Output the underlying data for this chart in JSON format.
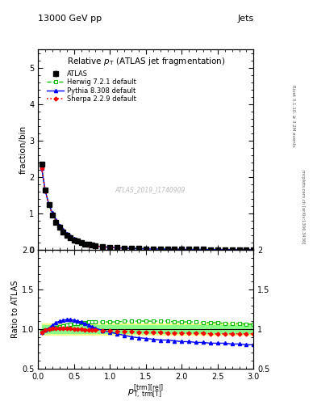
{
  "title": "Relative $p_{\\mathrm{T}}$ (ATLAS jet fragmentation)",
  "header_left": "13000 GeV pp",
  "header_right": "Jets",
  "right_label": "Rivet 3.1.10, ≥ 3.2M events",
  "right_label2": "mcplots.cern.ch [arXiv:1306.3436]",
  "watermark": "ATLAS_2019_I1740909",
  "ylabel_main": "fraction/bin",
  "ylabel_ratio": "Ratio to ATLAS",
  "xlabel": "$p_{\\mathrm{T,trm[T]}}^{\\mathrm{[trm][rel]}}$",
  "x_data": [
    0.05,
    0.1,
    0.15,
    0.2,
    0.25,
    0.3,
    0.35,
    0.4,
    0.45,
    0.5,
    0.55,
    0.6,
    0.65,
    0.7,
    0.75,
    0.8,
    0.9,
    1.0,
    1.1,
    1.2,
    1.3,
    1.4,
    1.5,
    1.6,
    1.7,
    1.8,
    1.9,
    2.0,
    2.1,
    2.2,
    2.3,
    2.4,
    2.5,
    2.6,
    2.7,
    2.8,
    2.9,
    3.0
  ],
  "atlas_y": [
    2.35,
    1.65,
    1.25,
    0.97,
    0.77,
    0.62,
    0.5,
    0.41,
    0.34,
    0.28,
    0.24,
    0.2,
    0.17,
    0.15,
    0.13,
    0.11,
    0.09,
    0.075,
    0.065,
    0.055,
    0.048,
    0.042,
    0.037,
    0.033,
    0.03,
    0.027,
    0.024,
    0.022,
    0.02,
    0.018,
    0.017,
    0.015,
    0.014,
    0.013,
    0.012,
    0.011,
    0.01,
    0.009
  ],
  "atlas_err": [
    0.05,
    0.04,
    0.03,
    0.025,
    0.02,
    0.016,
    0.013,
    0.011,
    0.009,
    0.008,
    0.007,
    0.006,
    0.005,
    0.005,
    0.004,
    0.004,
    0.003,
    0.003,
    0.003,
    0.002,
    0.002,
    0.002,
    0.002,
    0.002,
    0.002,
    0.001,
    0.001,
    0.001,
    0.001,
    0.001,
    0.001,
    0.001,
    0.001,
    0.001,
    0.001,
    0.001,
    0.001,
    0.001
  ],
  "herwig_ratio": [
    0.97,
    0.99,
    1.0,
    1.01,
    1.02,
    1.03,
    1.04,
    1.05,
    1.06,
    1.07,
    1.07,
    1.08,
    1.08,
    1.09,
    1.09,
    1.09,
    1.09,
    1.09,
    1.09,
    1.1,
    1.1,
    1.1,
    1.1,
    1.1,
    1.1,
    1.1,
    1.09,
    1.09,
    1.09,
    1.09,
    1.08,
    1.08,
    1.08,
    1.07,
    1.07,
    1.07,
    1.06,
    1.06
  ],
  "pythia_ratio": [
    0.96,
    0.99,
    1.01,
    1.05,
    1.08,
    1.1,
    1.11,
    1.12,
    1.12,
    1.11,
    1.1,
    1.09,
    1.07,
    1.05,
    1.03,
    1.01,
    0.98,
    0.96,
    0.94,
    0.92,
    0.9,
    0.89,
    0.88,
    0.87,
    0.86,
    0.86,
    0.85,
    0.84,
    0.84,
    0.83,
    0.83,
    0.82,
    0.82,
    0.82,
    0.81,
    0.81,
    0.8,
    0.8
  ],
  "sherpa_ratio": [
    0.96,
    0.99,
    1.0,
    1.01,
    1.01,
    1.01,
    1.01,
    1.01,
    1.01,
    1.0,
    1.0,
    1.0,
    0.99,
    0.99,
    0.99,
    0.99,
    0.98,
    0.98,
    0.97,
    0.97,
    0.97,
    0.96,
    0.96,
    0.96,
    0.96,
    0.95,
    0.95,
    0.95,
    0.95,
    0.95,
    0.95,
    0.94,
    0.94,
    0.94,
    0.94,
    0.94,
    0.94,
    0.94
  ],
  "xlim": [
    0,
    3.0
  ],
  "ylim_main": [
    0,
    5.5
  ],
  "ylim_ratio": [
    0.5,
    2.0
  ],
  "yticks_main": [
    0,
    1,
    2,
    3,
    4,
    5
  ],
  "yticks_ratio": [
    0.5,
    1.0,
    1.5,
    2.0
  ],
  "color_atlas": "#000000",
  "color_herwig": "#00bb00",
  "color_pythia": "#0000ff",
  "color_sherpa": "#ff0000",
  "band_yellow": "#ffff88",
  "band_green": "#88ff88"
}
